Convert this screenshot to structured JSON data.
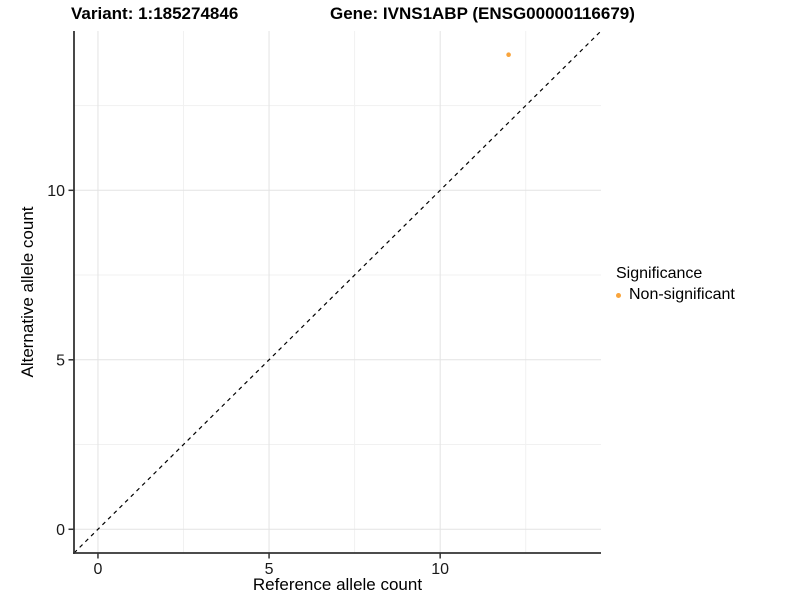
{
  "titles": {
    "variant": "Variant: 1:185274846",
    "gene": "Gene: IVNS1ABP (ENSG00000116679)"
  },
  "chart_data": {
    "type": "scatter",
    "title": "Variant: 1:185274846   Gene: IVNS1ABP (ENSG00000116679)",
    "xlabel": "Reference allele count",
    "ylabel": "Alternative allele count",
    "xlim": [
      -0.7,
      14.7
    ],
    "ylim": [
      -0.7,
      14.7
    ],
    "x_ticks_major": [
      0,
      5,
      10
    ],
    "x_ticks_minor": [
      2.5,
      7.5,
      12.5
    ],
    "y_ticks_major": [
      0,
      5,
      10
    ],
    "y_ticks_minor": [
      2.5,
      7.5,
      12.5
    ],
    "grid": true,
    "reference_line": {
      "type": "abline",
      "slope": 1,
      "intercept": 0,
      "style": "dashed",
      "color": "#000000"
    },
    "series": [
      {
        "name": "Non-significant",
        "color": "#F9A43B",
        "points": [
          {
            "x": 12,
            "y": 14
          }
        ]
      }
    ],
    "legend": {
      "title": "Significance",
      "position": "right",
      "items": [
        {
          "label": "Non-significant",
          "color": "#F9A43B"
        }
      ]
    },
    "colors": {
      "grid_major": "#E3E3E3",
      "grid_minor": "#F1F1F1",
      "axis_line": "#333333",
      "tick_mark": "#333333",
      "tick_label": "#1A1A1A",
      "background": "#FFFFFF"
    }
  }
}
